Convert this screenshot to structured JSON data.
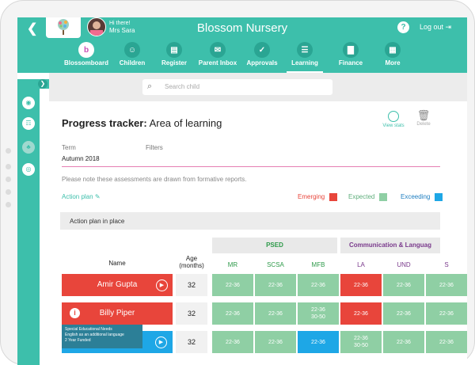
{
  "app": {
    "title": "Blossom Nursery",
    "greeting": "Hi there!",
    "user": "Mrs Sara",
    "logout": "Log out"
  },
  "nav": [
    {
      "label": "Blossomboard",
      "icon": "blossom-icon"
    },
    {
      "label": "Children",
      "icon": "smiley-icon"
    },
    {
      "label": "Register",
      "icon": "register-icon"
    },
    {
      "label": "Parent Inbox",
      "icon": "inbox-icon"
    },
    {
      "label": "Approvals",
      "icon": "approvals-icon"
    },
    {
      "label": "Learning",
      "icon": "book-icon"
    },
    {
      "label": "Finance",
      "icon": "chart-icon"
    },
    {
      "label": "More",
      "icon": "grid-icon"
    }
  ],
  "search": {
    "placeholder": "Search child"
  },
  "page": {
    "title_bold": "Progress tracker:",
    "title_rest": "Area of learning",
    "view_stats": "View stats",
    "delete": "Delete",
    "term_label": "Term",
    "filters_label": "Filters",
    "term_value": "Autumn 2018",
    "note": "Please note these assessments are drawn from formative reports.",
    "action_plan": "Action plan",
    "plan_bar": "Action plan in place"
  },
  "legend": [
    {
      "label": "Emerging",
      "color": "#e8453b"
    },
    {
      "label": "Expected",
      "color": "#8fcfa4"
    },
    {
      "label": "Exceeding",
      "color": "#1ea7e6"
    }
  ],
  "table": {
    "groups": [
      {
        "label": "PSED",
        "color": "#2e9a4a"
      },
      {
        "label": "Communication & Languag",
        "color": "#7a3a8c"
      }
    ],
    "name_header": "Name",
    "age_header": "Age\n(months)",
    "columns": [
      "MR",
      "SCSA",
      "MFB",
      "LA",
      "UND",
      "S"
    ],
    "rows": [
      {
        "name": "Amir Gupta",
        "age": "32",
        "cells": [
          "22-36",
          "22-36",
          "22-36",
          "22-36",
          "22-36",
          "22-36"
        ]
      },
      {
        "name": "Billy Piper",
        "age": "32",
        "cells": [
          "22-36",
          "22-36",
          "22-36\n30-50",
          "22-36",
          "22-36",
          "22-36"
        ]
      },
      {
        "name": "",
        "age": "32",
        "cells": [
          "22-36",
          "22-36",
          "22-36",
          "22-36\n30-50",
          "22-36",
          "22-36"
        ]
      }
    ]
  },
  "tooltip": [
    "Special Educational Needs",
    "English as an additional language",
    "2 Year Funded"
  ]
}
